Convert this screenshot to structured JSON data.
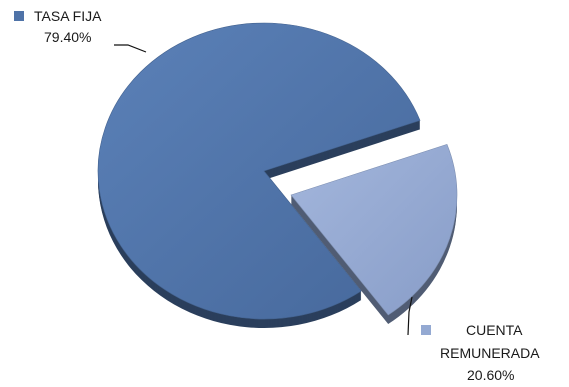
{
  "chart_data": {
    "type": "pie",
    "slices": [
      {
        "label": "TASA FIJA",
        "value": 79.4,
        "value_label": "79.40%",
        "color": "#4f73a8",
        "exploded": false
      },
      {
        "label": "CUENTA REMUNERADA",
        "label_lines": [
          "CUENTA",
          "REMUNERADA"
        ],
        "value": 20.6,
        "value_label": "20.60%",
        "color": "#94a9d2",
        "exploded": true
      }
    ],
    "style": "3d-exploded",
    "legend": "inline-labels"
  }
}
